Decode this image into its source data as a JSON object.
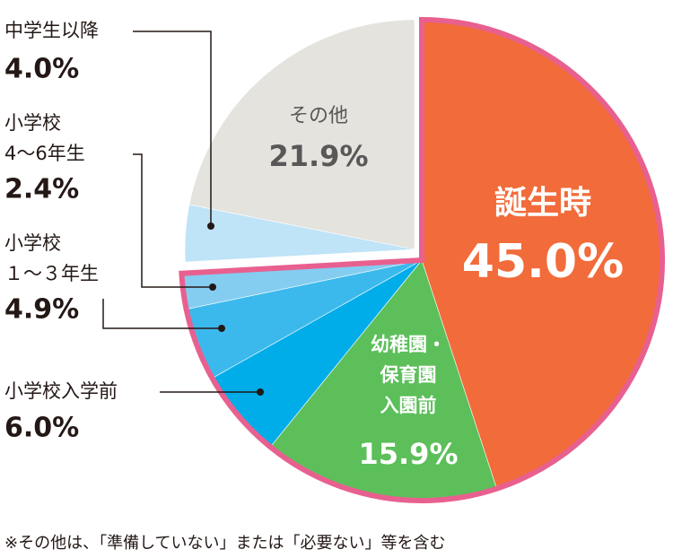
{
  "chart_data": {
    "type": "pie",
    "categories": [
      [
        "誕生時"
      ],
      [
        "幼稚園・",
        "保育園",
        "入園前"
      ],
      [
        "小学校入学前"
      ],
      [
        "小学校",
        "１〜３年生"
      ],
      [
        "小学校",
        "4〜6年生"
      ],
      [
        "中学生以降"
      ],
      [
        "その他"
      ]
    ],
    "values": [
      45.0,
      15.9,
      6.0,
      4.9,
      2.4,
      4.0,
      21.9
    ],
    "value_labels": [
      "45.0%",
      "15.9%",
      "6.0%",
      "4.9%",
      "2.4%",
      "4.0%",
      "21.9%"
    ],
    "colors": [
      "#f26b3a",
      "#5cbf5a",
      "#00ade9",
      "#3cb9ec",
      "#84cdf1",
      "#bfe3f7",
      "#e4e3de"
    ],
    "exploded": [
      false,
      false,
      false,
      false,
      false,
      true,
      true
    ],
    "footnote": "※その他は、「準備していない」または「必要ない」等を含む"
  }
}
